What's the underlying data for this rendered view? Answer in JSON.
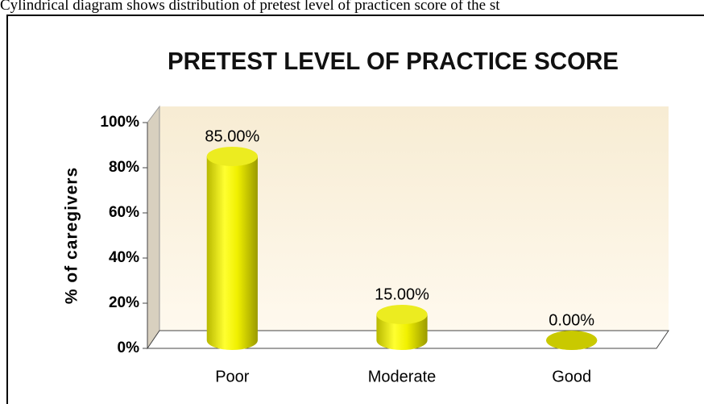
{
  "caption": "Cylindrical diagram shows distribution of pretest level of practicen score of the st",
  "chart_data": {
    "type": "cylinder-bar",
    "title": "PRETEST LEVEL OF PRACTICE SCORE",
    "y_label": "% of caregivers",
    "categories": [
      "Poor",
      "Moderate",
      "Good"
    ],
    "values": [
      85,
      15,
      0
    ],
    "value_labels": [
      "85.00%",
      "15.00%",
      "0.00%"
    ],
    "color": "#f2f200",
    "ylim": [
      0,
      100
    ],
    "yticks": [
      {
        "value": 0,
        "label": "0%"
      },
      {
        "value": 20,
        "label": "20%"
      },
      {
        "value": 40,
        "label": "40%"
      },
      {
        "value": 60,
        "label": "60%"
      },
      {
        "value": 80,
        "label": "80%"
      },
      {
        "value": 100,
        "label": "100%"
      }
    ]
  }
}
